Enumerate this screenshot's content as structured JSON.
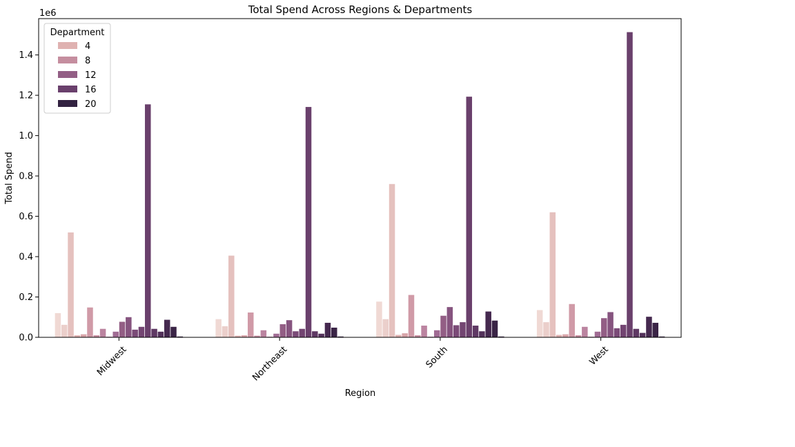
{
  "chart_data": {
    "type": "bar",
    "title": "Total Spend Across Regions & Departments",
    "xlabel": "Region",
    "ylabel": "Total Spend",
    "y_offset_text": "1e6",
    "ylim": [
      0,
      1580000
    ],
    "yticks": [
      0,
      200000,
      400000,
      600000,
      800000,
      1000000,
      1200000,
      1400000
    ],
    "ytick_labels": [
      "0.0",
      "0.2",
      "0.4",
      "0.6",
      "0.8",
      "1.0",
      "1.2",
      "1.4"
    ],
    "grid": false,
    "categories": [
      "Midwest",
      "Northeast",
      "South",
      "West"
    ],
    "hue_title": "Department",
    "legend": {
      "title": "Department",
      "placement": "top-left",
      "entries": [
        {
          "label": "4",
          "color": "#dfb2b1"
        },
        {
          "label": "8",
          "color": "#c58e9f"
        },
        {
          "label": "12",
          "color": "#935e85"
        },
        {
          "label": "16",
          "color": "#6a406c"
        },
        {
          "label": "20",
          "color": "#322241"
        }
      ]
    },
    "series": [
      {
        "department": 1,
        "color": "#f0d9d4",
        "values": [
          120000,
          90000,
          177000,
          135000
        ]
      },
      {
        "department": 2,
        "color": "#ebcfcb",
        "values": [
          62000,
          55000,
          90000,
          75000
        ]
      },
      {
        "department": 3,
        "color": "#e5c1be",
        "values": [
          520000,
          405000,
          760000,
          620000
        ]
      },
      {
        "department": 4,
        "color": "#dfb2b1",
        "values": [
          10000,
          8000,
          12000,
          12000
        ]
      },
      {
        "department": 5,
        "color": "#d8a4a9",
        "values": [
          15000,
          10000,
          20000,
          15000
        ]
      },
      {
        "department": 6,
        "color": "#d09aa7",
        "values": [
          148000,
          123000,
          210000,
          165000
        ]
      },
      {
        "department": 7,
        "color": "#c58e9f",
        "values": [
          10000,
          8000,
          10000,
          10000
        ]
      },
      {
        "department": 8,
        "color": "#bb84a0",
        "values": [
          42000,
          35000,
          58000,
          52000
        ]
      },
      {
        "department": 9,
        "color": "#ad769a",
        "values": [
          3000,
          3000,
          3000,
          3000
        ]
      },
      {
        "department": 10,
        "color": "#a06b93",
        "values": [
          28000,
          18000,
          35000,
          28000
        ]
      },
      {
        "department": 11,
        "color": "#935e85",
        "values": [
          77000,
          65000,
          107000,
          95000
        ]
      },
      {
        "department": 12,
        "color": "#86547f",
        "values": [
          100000,
          85000,
          150000,
          125000
        ]
      },
      {
        "department": 13,
        "color": "#7b4b78",
        "values": [
          38000,
          30000,
          60000,
          45000
        ]
      },
      {
        "department": 14,
        "color": "#734572",
        "values": [
          52000,
          42000,
          75000,
          62000
        ]
      },
      {
        "department": 15,
        "color": "#6a406c",
        "values": [
          1155000,
          1142000,
          1193000,
          1513000
        ]
      },
      {
        "department": 16,
        "color": "#5f3964",
        "values": [
          42000,
          30000,
          58000,
          42000
        ]
      },
      {
        "department": 17,
        "color": "#52315a",
        "values": [
          28000,
          18000,
          30000,
          22000
        ]
      },
      {
        "department": 18,
        "color": "#45294f",
        "values": [
          87000,
          72000,
          128000,
          102000
        ]
      },
      {
        "department": 19,
        "color": "#3a2446",
        "values": [
          52000,
          48000,
          83000,
          72000
        ]
      },
      {
        "department": 20,
        "color": "#322241",
        "values": [
          4000,
          4000,
          4000,
          4000
        ]
      }
    ]
  }
}
